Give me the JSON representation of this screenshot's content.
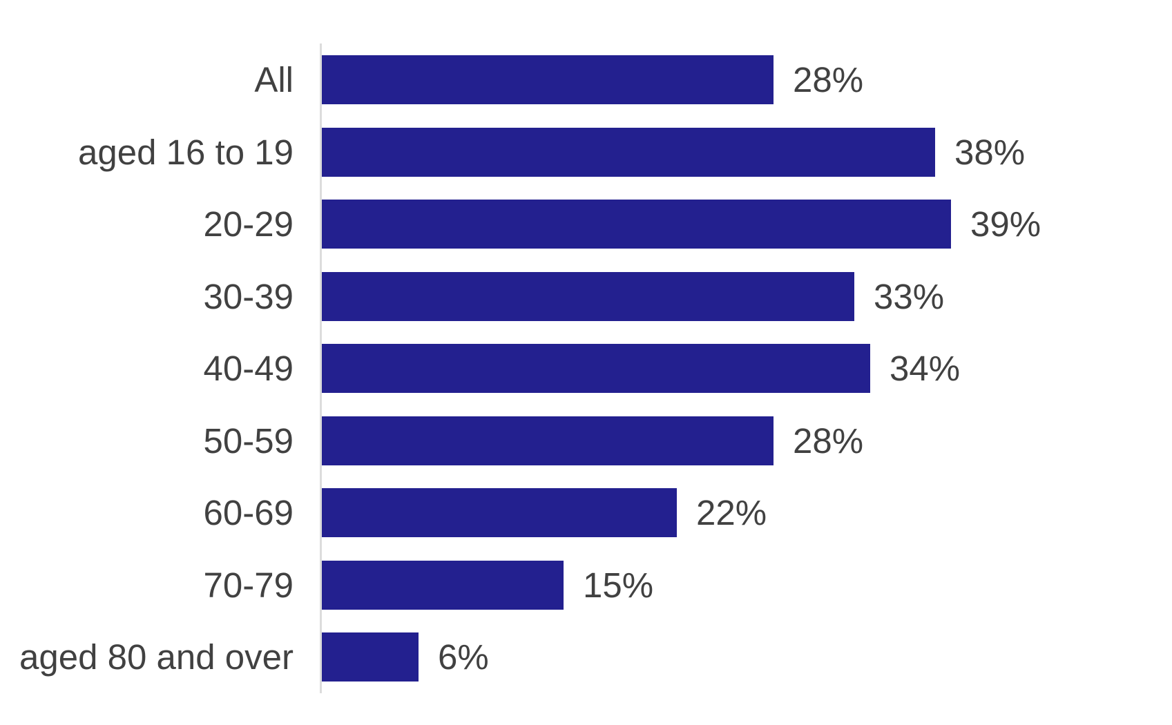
{
  "chart_data": {
    "type": "bar",
    "orientation": "horizontal",
    "categories": [
      "All",
      "aged 16 to 19",
      "20-29",
      "30-39",
      "40-49",
      "50-59",
      "60-69",
      "70-79",
      "aged 80 and over"
    ],
    "values": [
      28,
      38,
      39,
      33,
      34,
      28,
      22,
      15,
      6
    ],
    "value_labels": [
      "28%",
      "38%",
      "39%",
      "33%",
      "34%",
      "28%",
      "22%",
      "15%",
      "6%"
    ],
    "title": "",
    "xlabel": "",
    "ylabel": "",
    "xlim": [
      0,
      39
    ],
    "grid": false,
    "legend": "none",
    "unit": "percent",
    "colors": {
      "bar": "#23208F",
      "axis_line": "#DCDCDC",
      "label_text": "#414141"
    }
  }
}
